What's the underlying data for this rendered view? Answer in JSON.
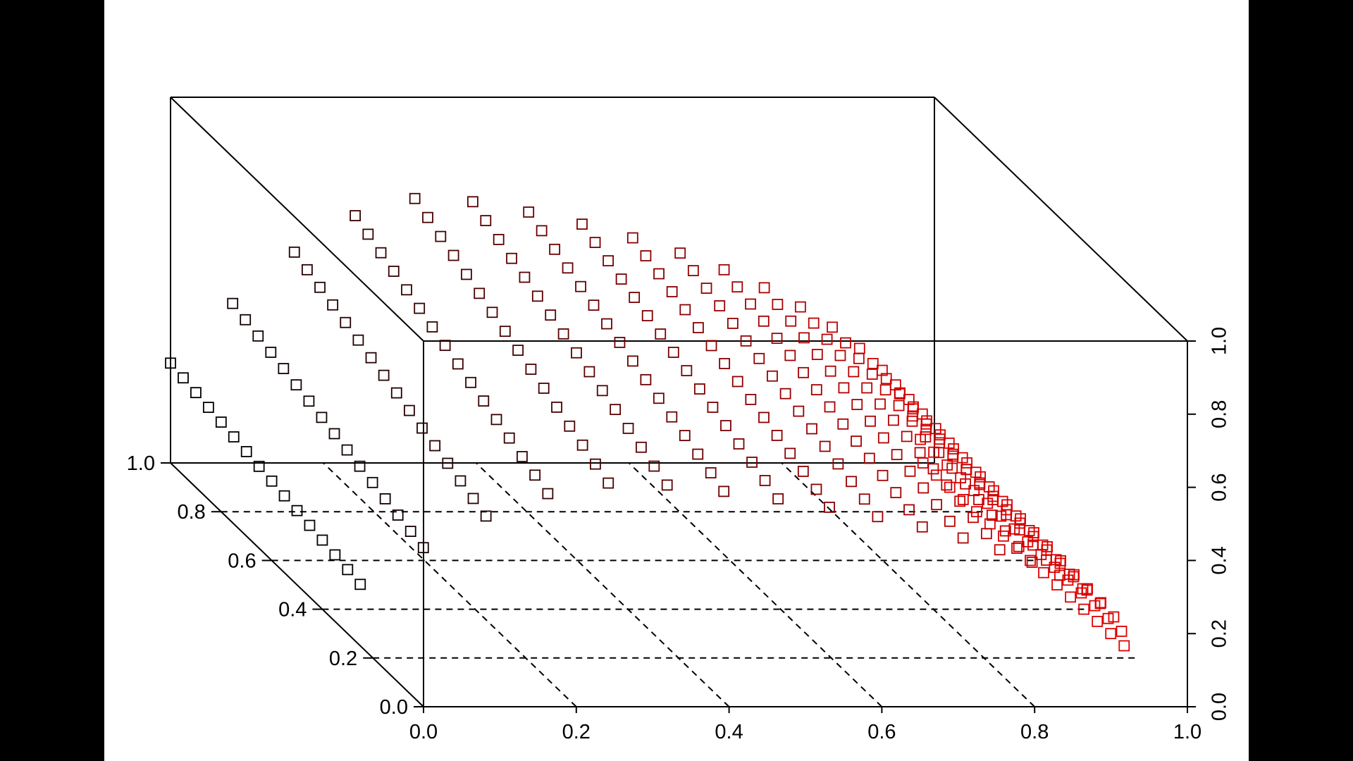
{
  "chart_data": {
    "type": "scatter",
    "projection": "3d-box",
    "grid": true,
    "x_axis": {
      "ticks": [
        "0.0",
        "0.2",
        "0.4",
        "0.6",
        "0.8",
        "1.0"
      ],
      "range": [
        0,
        1
      ]
    },
    "y_axis": {
      "ticks": [
        "0.0",
        "0.2",
        "0.4",
        "0.6",
        "0.8",
        "1.0"
      ],
      "range": [
        0,
        1
      ]
    },
    "z_axis": {
      "ticks": [
        "0.0",
        "0.2",
        "0.4",
        "0.6",
        "0.8",
        "1.0"
      ],
      "range": [
        0,
        1
      ]
    },
    "marker": "open-square",
    "color_gradient": {
      "low": "#000000",
      "high": "#e00000",
      "mapped_to": "x"
    },
    "series": [
      {
        "y": 1.0,
        "x_max": 0.985,
        "z_peak": 0.78
      },
      {
        "y": 0.95,
        "x_max": 0.986,
        "z_peak": 0.76
      },
      {
        "y": 0.9,
        "x_max": 0.987,
        "z_peak": 0.74
      },
      {
        "y": 0.85,
        "x_max": 0.988,
        "z_peak": 0.72
      },
      {
        "y": 0.8,
        "x_max": 0.989,
        "z_peak": 0.7
      },
      {
        "y": 0.75,
        "x_max": 0.99,
        "z_peak": 0.68
      },
      {
        "y": 0.7,
        "x_max": 0.991,
        "z_peak": 0.66
      },
      {
        "y": 0.65,
        "x_max": 0.992,
        "z_peak": 0.64
      },
      {
        "y": 0.6,
        "x_max": 0.993,
        "z_peak": 0.62
      },
      {
        "y": 0.55,
        "x_max": 0.994,
        "z_peak": 0.6
      },
      {
        "y": 0.5,
        "x_max": 0.995,
        "z_peak": 0.58
      },
      {
        "y": 0.45,
        "x_max": 0.996,
        "z_peak": 0.56
      },
      {
        "y": 0.4,
        "x_max": 0.997,
        "z_peak": 0.54
      },
      {
        "y": 0.35,
        "x_max": 0.998,
        "z_peak": 0.52
      },
      {
        "y": 0.3,
        "x_max": 0.999,
        "z_peak": 0.5
      },
      {
        "y": 0.25,
        "x_max": 1.0,
        "z_peak": 0.48
      }
    ],
    "points_per_series": 20
  }
}
